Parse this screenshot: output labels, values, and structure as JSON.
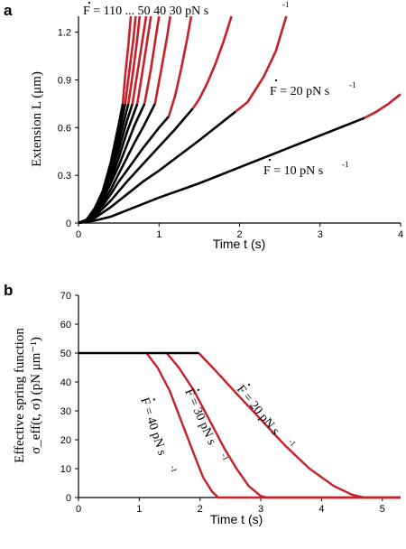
{
  "chart_data": [
    {
      "panel": "a",
      "type": "line",
      "xlabel": "Time t (s)",
      "ylabel": "Extension L (μm)",
      "xlim": [
        0,
        4
      ],
      "ylim": [
        0,
        1.3
      ],
      "xticks": [
        "0",
        "1",
        "2",
        "3",
        "4"
      ],
      "yticks": [
        "0",
        "0.3",
        "0.6",
        "0.9",
        "1.2"
      ],
      "series_colors": {
        "loading": "#000000",
        "unbinding": "#c8202a"
      },
      "top_annotation": "F = 110   ...   50 40   30 pN s",
      "annotations": [
        "F = 20 pN s",
        "F = 10 pN s"
      ],
      "annotation_exponent": "-1",
      "series": [
        {
          "rate": 110,
          "points": [
            [
              0,
              0
            ],
            [
              0.1,
              0.02
            ],
            [
              0.2,
              0.09
            ],
            [
              0.3,
              0.2
            ],
            [
              0.4,
              0.38
            ],
            [
              0.5,
              0.62
            ],
            [
              0.55,
              0.75
            ],
            [
              0.58,
              0.93
            ],
            [
              0.62,
              1.12
            ],
            [
              0.65,
              1.3
            ]
          ]
        },
        {
          "rate": 100,
          "points": [
            [
              0,
              0
            ],
            [
              0.1,
              0.02
            ],
            [
              0.2,
              0.09
            ],
            [
              0.3,
              0.19
            ],
            [
              0.4,
              0.35
            ],
            [
              0.5,
              0.56
            ],
            [
              0.58,
              0.75
            ],
            [
              0.63,
              0.95
            ],
            [
              0.68,
              1.15
            ],
            [
              0.71,
              1.3
            ]
          ]
        },
        {
          "rate": 90,
          "points": [
            [
              0,
              0
            ],
            [
              0.1,
              0.02
            ],
            [
              0.2,
              0.08
            ],
            [
              0.3,
              0.18
            ],
            [
              0.4,
              0.33
            ],
            [
              0.5,
              0.51
            ],
            [
              0.62,
              0.75
            ],
            [
              0.68,
              0.96
            ],
            [
              0.73,
              1.16
            ],
            [
              0.76,
              1.3
            ]
          ]
        },
        {
          "rate": 80,
          "points": [
            [
              0,
              0
            ],
            [
              0.1,
              0.02
            ],
            [
              0.2,
              0.08
            ],
            [
              0.3,
              0.17
            ],
            [
              0.4,
              0.3
            ],
            [
              0.5,
              0.46
            ],
            [
              0.6,
              0.64
            ],
            [
              0.67,
              0.75
            ],
            [
              0.74,
              0.97
            ],
            [
              0.8,
              1.17
            ],
            [
              0.84,
              1.3
            ]
          ]
        },
        {
          "rate": 70,
          "points": [
            [
              0,
              0
            ],
            [
              0.1,
              0.02
            ],
            [
              0.2,
              0.07
            ],
            [
              0.3,
              0.16
            ],
            [
              0.4,
              0.27
            ],
            [
              0.5,
              0.41
            ],
            [
              0.6,
              0.57
            ],
            [
              0.73,
              0.75
            ],
            [
              0.8,
              0.97
            ],
            [
              0.86,
              1.17
            ],
            [
              0.9,
              1.3
            ]
          ]
        },
        {
          "rate": 60,
          "points": [
            [
              0,
              0
            ],
            [
              0.1,
              0.02
            ],
            [
              0.2,
              0.07
            ],
            [
              0.3,
              0.15
            ],
            [
              0.4,
              0.25
            ],
            [
              0.5,
              0.36
            ],
            [
              0.6,
              0.49
            ],
            [
              0.7,
              0.62
            ],
            [
              0.82,
              0.75
            ],
            [
              0.9,
              0.97
            ],
            [
              0.96,
              1.17
            ],
            [
              1.0,
              1.3
            ]
          ]
        },
        {
          "rate": 50,
          "points": [
            [
              0,
              0
            ],
            [
              0.1,
              0.02
            ],
            [
              0.2,
              0.06
            ],
            [
              0.3,
              0.13
            ],
            [
              0.4,
              0.21
            ],
            [
              0.5,
              0.31
            ],
            [
              0.6,
              0.41
            ],
            [
              0.7,
              0.51
            ],
            [
              0.8,
              0.6
            ],
            [
              0.95,
              0.75
            ],
            [
              1.03,
              0.97
            ],
            [
              1.1,
              1.17
            ],
            [
              1.14,
              1.3
            ]
          ]
        },
        {
          "rate": 40,
          "points": [
            [
              0,
              0
            ],
            [
              0.1,
              0.015
            ],
            [
              0.2,
              0.05
            ],
            [
              0.3,
              0.11
            ],
            [
              0.4,
              0.18
            ],
            [
              0.5,
              0.26
            ],
            [
              0.6,
              0.33
            ],
            [
              0.8,
              0.47
            ],
            [
              1.0,
              0.6
            ],
            [
              1.12,
              0.67
            ],
            [
              1.2,
              0.8
            ],
            [
              1.28,
              0.98
            ],
            [
              1.35,
              1.16
            ],
            [
              1.4,
              1.3
            ]
          ]
        },
        {
          "rate": 30,
          "points": [
            [
              0,
              0
            ],
            [
              0.1,
              0.012
            ],
            [
              0.2,
              0.04
            ],
            [
              0.3,
              0.09
            ],
            [
              0.4,
              0.14
            ],
            [
              0.6,
              0.26
            ],
            [
              0.8,
              0.37
            ],
            [
              1.0,
              0.48
            ],
            [
              1.2,
              0.59
            ],
            [
              1.42,
              0.72
            ],
            [
              1.5,
              0.78
            ],
            [
              1.6,
              0.88
            ],
            [
              1.7,
              1.0
            ],
            [
              1.8,
              1.14
            ],
            [
              1.9,
              1.3
            ]
          ]
        },
        {
          "rate": 20,
          "points": [
            [
              0,
              0
            ],
            [
              0.2,
              0.03
            ],
            [
              0.4,
              0.1
            ],
            [
              0.6,
              0.18
            ],
            [
              0.8,
              0.26
            ],
            [
              1.0,
              0.33
            ],
            [
              1.5,
              0.52
            ],
            [
              1.95,
              0.7
            ],
            [
              2.1,
              0.76
            ],
            [
              2.3,
              0.92
            ],
            [
              2.45,
              1.08
            ],
            [
              2.58,
              1.3
            ]
          ]
        },
        {
          "rate": 10,
          "points": [
            [
              0,
              0
            ],
            [
              0.2,
              0.015
            ],
            [
              0.4,
              0.04
            ],
            [
              0.6,
              0.08
            ],
            [
              1.0,
              0.16
            ],
            [
              1.5,
              0.25
            ],
            [
              2.0,
              0.35
            ],
            [
              2.5,
              0.45
            ],
            [
              3.0,
              0.55
            ],
            [
              3.55,
              0.66
            ],
            [
              3.7,
              0.7
            ],
            [
              3.85,
              0.75
            ],
            [
              4.0,
              0.81
            ]
          ]
        }
      ],
      "red_from_x": {
        "110": 0.55,
        "100": 0.58,
        "90": 0.62,
        "80": 0.67,
        "70": 0.73,
        "60": 0.82,
        "50": 0.95,
        "40": 1.12,
        "30": 1.42,
        "20": 1.95,
        "10": 3.55
      }
    },
    {
      "panel": "b",
      "type": "line",
      "xlabel": "Time t (s)",
      "ylabel_line1": "Effective spring function",
      "ylabel_line2": "σ_eff(t, σ) (pN μm⁻¹)",
      "xlim": [
        0,
        5.3
      ],
      "ylim": [
        0,
        70
      ],
      "xticks": [
        "0",
        "1",
        "2",
        "3",
        "4",
        "5"
      ],
      "yticks": [
        "0",
        "10",
        "20",
        "30",
        "40",
        "50",
        "60",
        "70"
      ],
      "plateau": {
        "y": 50,
        "x_end": 1.98
      },
      "annotations": [
        "F = 40 pN s",
        "F = 30 pN s",
        "F = 20 pN s"
      ],
      "annotation_exponent": "-1",
      "series": [
        {
          "rate": 40,
          "points": [
            [
              1.12,
              50
            ],
            [
              1.3,
              45
            ],
            [
              1.5,
              37
            ],
            [
              1.7,
              26
            ],
            [
              1.9,
              15
            ],
            [
              2.05,
              7
            ],
            [
              2.2,
              2
            ],
            [
              2.3,
              0
            ],
            [
              5.3,
              0
            ]
          ]
        },
        {
          "rate": 30,
          "points": [
            [
              1.45,
              50
            ],
            [
              1.65,
              45
            ],
            [
              1.9,
              37
            ],
            [
              2.15,
              27
            ],
            [
              2.4,
              17
            ],
            [
              2.6,
              10
            ],
            [
              2.8,
              4
            ],
            [
              3.0,
              0.5
            ],
            [
              3.1,
              0
            ],
            [
              5.3,
              0
            ]
          ]
        },
        {
          "rate": 20,
          "points": [
            [
              1.98,
              50
            ],
            [
              2.25,
              44
            ],
            [
              2.6,
              36
            ],
            [
              3.0,
              27
            ],
            [
              3.4,
              18
            ],
            [
              3.8,
              10
            ],
            [
              4.2,
              4
            ],
            [
              4.5,
              1
            ],
            [
              4.7,
              0
            ],
            [
              5.3,
              0
            ]
          ]
        }
      ]
    }
  ]
}
